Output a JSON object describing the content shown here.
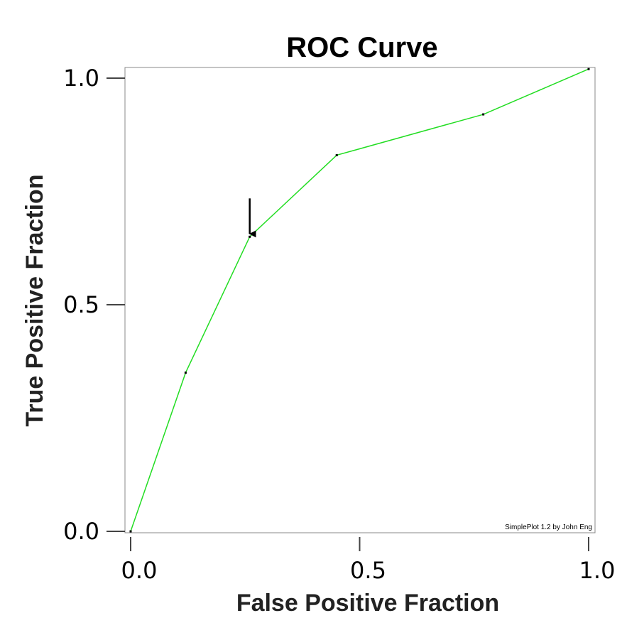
{
  "chart_data": {
    "type": "line",
    "title": "ROC Curve",
    "xlabel": "False Positive Fraction",
    "ylabel": "True Positive Fraction",
    "xlim": [
      0,
      1
    ],
    "ylim": [
      0,
      1
    ],
    "xticks": [
      "0.0",
      "0.5",
      "1.0"
    ],
    "yticks": [
      "0.0",
      "0.5",
      "1.0"
    ],
    "grid": false,
    "series": [
      {
        "color": "#22dd22",
        "points": [
          {
            "x": 0.0,
            "y": 0.0
          },
          {
            "x": 0.12,
            "y": 0.35
          },
          {
            "x": 0.26,
            "y": 0.65
          },
          {
            "x": 0.45,
            "y": 0.83
          },
          {
            "x": 0.77,
            "y": 0.92
          },
          {
            "x": 1.0,
            "y": 1.02
          }
        ]
      }
    ],
    "annotations": [
      {
        "type": "arrow",
        "x": 0.26,
        "y": 0.65
      }
    ],
    "credit": "SimplePlot 1.2 by John Eng"
  }
}
